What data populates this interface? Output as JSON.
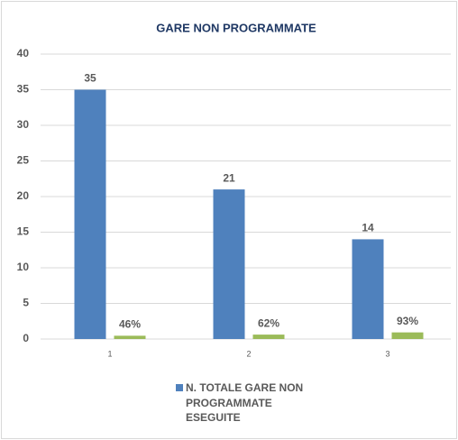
{
  "chart_data": {
    "type": "bar",
    "title": "GARE NON PROGRAMMATE",
    "categories": [
      "1",
      "2",
      "3"
    ],
    "series": [
      {
        "name": "N. TOTALE GARE NON PROGRAMMATE ESEGUITE",
        "color": "#4f81bd",
        "values": [
          35,
          21,
          14
        ]
      },
      {
        "color": "#9bbb59",
        "values": [
          0.46,
          0.62,
          0.93
        ],
        "value_labels": [
          "46%",
          "62%",
          "93%"
        ]
      }
    ],
    "ylim": [
      0,
      40
    ],
    "yticks": [
      0,
      5,
      10,
      15,
      20,
      25,
      30,
      35,
      40
    ],
    "grid": true,
    "legend": "bottom"
  }
}
